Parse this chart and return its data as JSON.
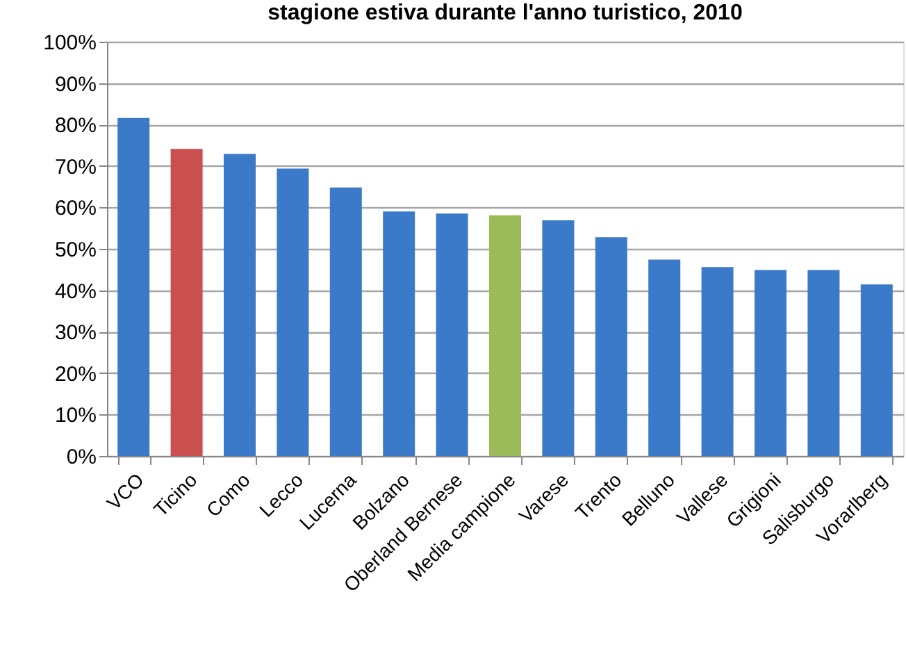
{
  "chart_data": {
    "type": "bar",
    "title": "stagione estiva durante l'anno turistico, 2010",
    "categories": [
      "VCO",
      "Ticino",
      "Como",
      "Lecco",
      "Lucerna",
      "Bolzano",
      "Oberland Bernese",
      "Media campione",
      "Varese",
      "Trento",
      "Belluno",
      "Vallese",
      "Grigioni",
      "Salisburgo",
      "Vorarlberg"
    ],
    "values": [
      81.6,
      74.1,
      72.9,
      69.4,
      64.8,
      59.0,
      58.5,
      58.1,
      56.9,
      52.8,
      47.4,
      45.6,
      44.9,
      44.9,
      41.4
    ],
    "colors": [
      "#3b79c9",
      "#c9504e",
      "#3b79c9",
      "#3b79c9",
      "#3b79c9",
      "#3b79c9",
      "#3b79c9",
      "#9bbb59",
      "#3b79c9",
      "#3b79c9",
      "#3b79c9",
      "#3b79c9",
      "#3b79c9",
      "#3b79c9",
      "#3b79c9"
    ],
    "ylim": [
      0,
      100
    ],
    "yticks": [
      {
        "value": 0,
        "label": "0%"
      },
      {
        "value": 10,
        "label": "10%"
      },
      {
        "value": 20,
        "label": "20%"
      },
      {
        "value": 30,
        "label": "30%"
      },
      {
        "value": 40,
        "label": "40%"
      },
      {
        "value": 50,
        "label": "50%"
      },
      {
        "value": 60,
        "label": "60%"
      },
      {
        "value": 70,
        "label": "70%"
      },
      {
        "value": 80,
        "label": "80%"
      },
      {
        "value": 90,
        "label": "90%"
      },
      {
        "value": 100,
        "label": "100%"
      }
    ],
    "grid": "y"
  }
}
